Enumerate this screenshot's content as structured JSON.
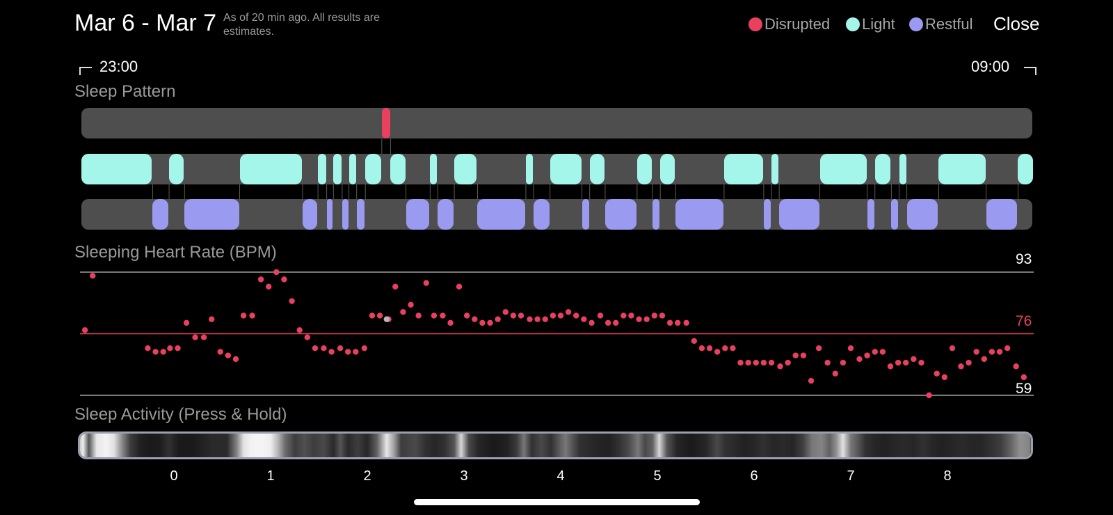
{
  "header": {
    "title": "Mar 6 - Mar 7",
    "subtitle": "As of 20 min ago. All results are estimates.",
    "close_label": "Close"
  },
  "legend": [
    {
      "label": "Disrupted",
      "color": "#e8405e"
    },
    {
      "label": "Light",
      "color": "#a4f6ea"
    },
    {
      "label": "Restful",
      "color": "#9a9bf0"
    }
  ],
  "time_range": {
    "start": "23:00",
    "end": "09:00"
  },
  "sleep_pattern": {
    "title": "Sleep Pattern",
    "stages": [
      {
        "stage": "light",
        "start": -0.96,
        "end": -0.22
      },
      {
        "stage": "restful",
        "start": -0.22,
        "end": -0.05
      },
      {
        "stage": "light",
        "start": -0.05,
        "end": 0.11
      },
      {
        "stage": "restful",
        "start": 0.11,
        "end": 0.68
      },
      {
        "stage": "light",
        "start": 0.68,
        "end": 1.33
      },
      {
        "stage": "restful",
        "start": 1.33,
        "end": 1.49
      },
      {
        "stage": "light",
        "start": 1.49,
        "end": 1.58
      },
      {
        "stage": "restful",
        "start": 1.58,
        "end": 1.65
      },
      {
        "stage": "light",
        "start": 1.65,
        "end": 1.74
      },
      {
        "stage": "restful",
        "start": 1.74,
        "end": 1.81
      },
      {
        "stage": "light",
        "start": 1.81,
        "end": 1.89
      },
      {
        "stage": "restful",
        "start": 1.89,
        "end": 1.98
      },
      {
        "stage": "light",
        "start": 1.98,
        "end": 2.15
      },
      {
        "stage": "light",
        "start": 2.24,
        "end": 2.4
      },
      {
        "stage": "restful",
        "start": 2.4,
        "end": 2.65
      },
      {
        "stage": "light",
        "start": 2.65,
        "end": 2.73
      },
      {
        "stage": "restful",
        "start": 2.73,
        "end": 2.9
      },
      {
        "stage": "light",
        "start": 2.9,
        "end": 3.14
      },
      {
        "stage": "restful",
        "start": 3.14,
        "end": 3.64
      },
      {
        "stage": "light",
        "start": 3.64,
        "end": 3.72
      },
      {
        "stage": "restful",
        "start": 3.72,
        "end": 3.89
      },
      {
        "stage": "light",
        "start": 3.89,
        "end": 4.22
      },
      {
        "stage": "restful",
        "start": 4.22,
        "end": 4.3
      },
      {
        "stage": "light",
        "start": 4.3,
        "end": 4.46
      },
      {
        "stage": "restful",
        "start": 4.46,
        "end": 4.79
      },
      {
        "stage": "light",
        "start": 4.79,
        "end": 4.95
      },
      {
        "stage": "restful",
        "start": 4.95,
        "end": 5.03
      },
      {
        "stage": "light",
        "start": 5.03,
        "end": 5.19
      },
      {
        "stage": "restful",
        "start": 5.19,
        "end": 5.69
      },
      {
        "stage": "light",
        "start": 5.69,
        "end": 6.1
      },
      {
        "stage": "restful",
        "start": 6.1,
        "end": 6.18
      },
      {
        "stage": "light",
        "start": 6.18,
        "end": 6.26
      },
      {
        "stage": "restful",
        "start": 6.26,
        "end": 6.68
      },
      {
        "stage": "light",
        "start": 6.68,
        "end": 7.17
      },
      {
        "stage": "restful",
        "start": 7.17,
        "end": 7.25
      },
      {
        "stage": "light",
        "start": 7.25,
        "end": 7.42
      },
      {
        "stage": "restful",
        "start": 7.42,
        "end": 7.5
      },
      {
        "stage": "light",
        "start": 7.5,
        "end": 7.58
      },
      {
        "stage": "restful",
        "start": 7.58,
        "end": 7.91
      },
      {
        "stage": "light",
        "start": 7.91,
        "end": 8.4
      },
      {
        "stage": "restful",
        "start": 8.4,
        "end": 8.73
      },
      {
        "stage": "light",
        "start": 8.73,
        "end": 8.89
      }
    ],
    "disruptions": [
      {
        "start": 2.15,
        "end": 2.24
      }
    ]
  },
  "heart_rate": {
    "title": "Sleeping Heart Rate (BPM)",
    "max": 93,
    "avg": 76,
    "min": 59,
    "max_label": "93",
    "avg_label": "76",
    "min_label": "59",
    "line_color": "#a0a0a0",
    "avg_color": "#e8405e",
    "points": [
      [
        -0.92,
        77
      ],
      [
        -0.84,
        92
      ],
      [
        -0.27,
        72
      ],
      [
        -0.19,
        71
      ],
      [
        -0.11,
        71
      ],
      [
        -0.04,
        72
      ],
      [
        0.04,
        72
      ],
      [
        0.13,
        79
      ],
      [
        0.22,
        75
      ],
      [
        0.31,
        75
      ],
      [
        0.39,
        80
      ],
      [
        0.48,
        71
      ],
      [
        0.56,
        70
      ],
      [
        0.64,
        69
      ],
      [
        0.72,
        81
      ],
      [
        0.81,
        81
      ],
      [
        0.9,
        91
      ],
      [
        0.98,
        89
      ],
      [
        1.06,
        93
      ],
      [
        1.14,
        91
      ],
      [
        1.22,
        85
      ],
      [
        1.3,
        77
      ],
      [
        1.38,
        75
      ],
      [
        1.46,
        72
      ],
      [
        1.55,
        72
      ],
      [
        1.63,
        71
      ],
      [
        1.72,
        72
      ],
      [
        1.8,
        71
      ],
      [
        1.88,
        71
      ],
      [
        1.97,
        72
      ],
      [
        2.05,
        81
      ],
      [
        2.13,
        81
      ],
      [
        2.22,
        80
      ],
      [
        2.29,
        89
      ],
      [
        2.37,
        82
      ],
      [
        2.45,
        84
      ],
      [
        2.53,
        81
      ],
      [
        2.61,
        90
      ],
      [
        2.69,
        81
      ],
      [
        2.78,
        81
      ],
      [
        2.86,
        79
      ],
      [
        2.95,
        89
      ],
      [
        3.03,
        81
      ],
      [
        3.11,
        80
      ],
      [
        3.19,
        79
      ],
      [
        3.27,
        79
      ],
      [
        3.35,
        80
      ],
      [
        3.43,
        82
      ],
      [
        3.51,
        81
      ],
      [
        3.59,
        81
      ],
      [
        3.68,
        80
      ],
      [
        3.76,
        80
      ],
      [
        3.84,
        80
      ],
      [
        3.92,
        81
      ],
      [
        4.0,
        81
      ],
      [
        4.08,
        82
      ],
      [
        4.16,
        81
      ],
      [
        4.24,
        80
      ],
      [
        4.32,
        79
      ],
      [
        4.41,
        81
      ],
      [
        4.49,
        79
      ],
      [
        4.57,
        79
      ],
      [
        4.65,
        81
      ],
      [
        4.73,
        81
      ],
      [
        4.81,
        80
      ],
      [
        4.89,
        80
      ],
      [
        4.97,
        81
      ],
      [
        5.05,
        81
      ],
      [
        5.13,
        79
      ],
      [
        5.21,
        79
      ],
      [
        5.3,
        79
      ],
      [
        5.38,
        74
      ],
      [
        5.46,
        72
      ],
      [
        5.54,
        72
      ],
      [
        5.62,
        71
      ],
      [
        5.7,
        72
      ],
      [
        5.78,
        72
      ],
      [
        5.86,
        68
      ],
      [
        5.94,
        68
      ],
      [
        6.02,
        68
      ],
      [
        6.1,
        68
      ],
      [
        6.18,
        68
      ],
      [
        6.27,
        67
      ],
      [
        6.35,
        68
      ],
      [
        6.43,
        70
      ],
      [
        6.51,
        70
      ],
      [
        6.59,
        63
      ],
      [
        6.67,
        72
      ],
      [
        6.76,
        68
      ],
      [
        6.84,
        65
      ],
      [
        6.92,
        68
      ],
      [
        7.0,
        72
      ],
      [
        7.09,
        69
      ],
      [
        7.17,
        70
      ],
      [
        7.25,
        71
      ],
      [
        7.33,
        71
      ],
      [
        7.41,
        67
      ],
      [
        7.49,
        68
      ],
      [
        7.57,
        68
      ],
      [
        7.65,
        69
      ],
      [
        7.73,
        68
      ],
      [
        7.81,
        59
      ],
      [
        7.89,
        65
      ],
      [
        7.97,
        64
      ],
      [
        8.05,
        72
      ],
      [
        8.14,
        67
      ],
      [
        8.22,
        68
      ],
      [
        8.3,
        71
      ],
      [
        8.38,
        69
      ],
      [
        8.46,
        71
      ],
      [
        8.54,
        71
      ],
      [
        8.62,
        72
      ],
      [
        8.71,
        67
      ],
      [
        8.79,
        64
      ]
    ],
    "highlighted_point": [
      2.2,
      80
    ]
  },
  "sleep_activity": {
    "title": "Sleep Activity (Press & Hold)",
    "intensity": [
      [
        -0.99,
        0.8
      ],
      [
        -0.94,
        0.95
      ],
      [
        -0.88,
        0.3
      ],
      [
        -0.8,
        0.92
      ],
      [
        -0.7,
        0.97
      ],
      [
        -0.62,
        0.9
      ],
      [
        -0.53,
        0.5
      ],
      [
        -0.45,
        0.2
      ],
      [
        -0.35,
        0.08
      ],
      [
        -0.25,
        0.05
      ],
      [
        -0.15,
        0.06
      ],
      [
        -0.05,
        0.15
      ],
      [
        0.05,
        0.05
      ],
      [
        0.2,
        0.05
      ],
      [
        0.4,
        0.12
      ],
      [
        0.55,
        0.12
      ],
      [
        0.65,
        0.5
      ],
      [
        0.72,
        0.9
      ],
      [
        0.8,
        0.97
      ],
      [
        0.92,
        0.98
      ],
      [
        1.0,
        0.95
      ],
      [
        1.08,
        0.7
      ],
      [
        1.15,
        0.4
      ],
      [
        1.25,
        0.2
      ],
      [
        1.35,
        0.28
      ],
      [
        1.45,
        0.2
      ],
      [
        1.55,
        0.25
      ],
      [
        1.65,
        0.12
      ],
      [
        1.72,
        0.3
      ],
      [
        1.8,
        0.12
      ],
      [
        1.9,
        0.2
      ],
      [
        2.0,
        0.1
      ],
      [
        2.1,
        0.35
      ],
      [
        2.2,
        0.92
      ],
      [
        2.28,
        0.6
      ],
      [
        2.35,
        0.2
      ],
      [
        2.5,
        0.25
      ],
      [
        2.6,
        0.15
      ],
      [
        2.7,
        0.1
      ],
      [
        2.8,
        0.15
      ],
      [
        2.9,
        0.3
      ],
      [
        2.97,
        0.85
      ],
      [
        3.05,
        0.25
      ],
      [
        3.15,
        0.1
      ],
      [
        3.3,
        0.05
      ],
      [
        3.45,
        0.08
      ],
      [
        3.55,
        0.2
      ],
      [
        3.62,
        0.45
      ],
      [
        3.7,
        0.15
      ],
      [
        3.8,
        0.25
      ],
      [
        3.9,
        0.15
      ],
      [
        4.0,
        0.35
      ],
      [
        4.05,
        0.45
      ],
      [
        4.12,
        0.3
      ],
      [
        4.2,
        0.15
      ],
      [
        4.35,
        0.1
      ],
      [
        4.5,
        0.08
      ],
      [
        4.6,
        0.15
      ],
      [
        4.7,
        0.25
      ],
      [
        4.8,
        0.45
      ],
      [
        4.87,
        0.25
      ],
      [
        4.95,
        0.35
      ],
      [
        5.02,
        0.85
      ],
      [
        5.1,
        0.3
      ],
      [
        5.2,
        0.1
      ],
      [
        5.35,
        0.05
      ],
      [
        5.5,
        0.1
      ],
      [
        5.62,
        0.25
      ],
      [
        5.7,
        0.15
      ],
      [
        5.8,
        0.12
      ],
      [
        5.9,
        0.08
      ],
      [
        6.0,
        0.1
      ],
      [
        6.1,
        0.15
      ],
      [
        6.2,
        0.1
      ],
      [
        6.3,
        0.12
      ],
      [
        6.4,
        0.1
      ],
      [
        6.5,
        0.2
      ],
      [
        6.6,
        0.45
      ],
      [
        6.7,
        0.5
      ],
      [
        6.78,
        0.35
      ],
      [
        6.85,
        0.55
      ],
      [
        6.92,
        0.9
      ],
      [
        7.0,
        0.45
      ],
      [
        7.08,
        0.3
      ],
      [
        7.15,
        0.15
      ],
      [
        7.25,
        0.1
      ],
      [
        7.35,
        0.08
      ],
      [
        7.45,
        0.1
      ],
      [
        7.55,
        0.12
      ],
      [
        7.65,
        0.1
      ],
      [
        7.75,
        0.15
      ],
      [
        7.85,
        0.1
      ],
      [
        7.95,
        0.08
      ],
      [
        8.05,
        0.1
      ],
      [
        8.15,
        0.12
      ],
      [
        8.25,
        0.1
      ],
      [
        8.35,
        0.1
      ],
      [
        8.45,
        0.15
      ],
      [
        8.55,
        0.2
      ],
      [
        8.65,
        0.35
      ],
      [
        8.75,
        0.55
      ],
      [
        8.85,
        0.5
      ],
      [
        8.91,
        0.3
      ]
    ],
    "ticks": [
      "0",
      "1",
      "2",
      "3",
      "4",
      "5",
      "6",
      "7",
      "8"
    ]
  }
}
